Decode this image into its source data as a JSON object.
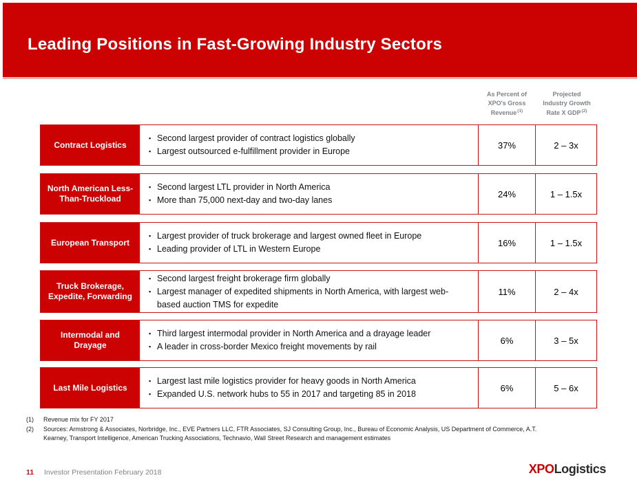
{
  "slide_title": "Leading Positions in Fast-Growing Industry Sectors",
  "colors": {
    "brand_red": "#cc0202",
    "border_red": "#c91414",
    "header_gray": "#7f8285",
    "footer_gray": "#828282",
    "logo_dark": "#2b2b2b"
  },
  "table": {
    "columns": [
      {
        "lines": [
          "As Percent of",
          "XPO's Gross",
          "Revenue"
        ],
        "ref": "(1)"
      },
      {
        "lines": [
          "Projected",
          "Industry Growth",
          "Rate X GDP"
        ],
        "ref": "(2)"
      }
    ],
    "rows": [
      {
        "sector": "Contract Logistics",
        "bullets": [
          "Second largest provider of contract logistics globally",
          "Largest outsourced e-fulfillment provider in Europe"
        ],
        "percent": "37%",
        "growth": "2 – 3x"
      },
      {
        "sector": "North American Less-Than-Truckload",
        "bullets": [
          "Second largest LTL provider in North America",
          "More than 75,000 next-day and two-day lanes"
        ],
        "percent": "24%",
        "growth": "1 – 1.5x"
      },
      {
        "sector": "European Transport",
        "bullets": [
          "Largest provider of truck brokerage and largest owned fleet in Europe",
          "Leading provider of LTL in Western Europe"
        ],
        "percent": "16%",
        "growth": "1 – 1.5x"
      },
      {
        "sector": "Truck Brokerage, Expedite, Forwarding",
        "bullets": [
          "Second largest freight brokerage firm globally",
          "Largest manager of expedited shipments in North America, with largest web-based auction TMS for expedite"
        ],
        "percent": "11%",
        "growth": "2 – 4x"
      },
      {
        "sector": "Intermodal and Drayage",
        "bullets": [
          "Third largest intermodal provider in North America and a drayage leader",
          "A leader in cross-border Mexico freight movements by rail"
        ],
        "percent": "6%",
        "growth": "3 – 5x"
      },
      {
        "sector": "Last Mile Logistics",
        "bullets": [
          "Largest last mile logistics provider for heavy goods in North America",
          "Expanded U.S. network hubs to 55 in 2017 and targeting 85 in 2018"
        ],
        "percent": "6%",
        "growth": "5 – 6x"
      }
    ]
  },
  "footnotes": [
    {
      "num": "(1)",
      "text": "Revenue mix for FY 2017"
    },
    {
      "num": "(2)",
      "text": "Sources: Armstrong & Associates, Norbridge, Inc., EVE Partners LLC, FTR Associates, SJ Consulting Group, Inc., Bureau of Economic Analysis, US Department of Commerce, A.T. Kearney, Transport Intelligence, American Trucking Associations, Technavio, Wall Street Research and management estimates"
    }
  ],
  "footer": {
    "page_number": "11",
    "label": "Investor Presentation February 2018",
    "logo_xpo": "XPO",
    "logo_logistics": "Logistics"
  }
}
